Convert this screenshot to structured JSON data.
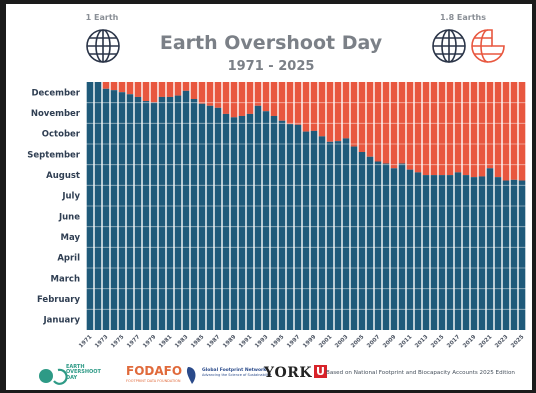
{
  "chart_data": {
    "type": "bar",
    "title": "Earth Overshoot Day",
    "subtitle": "1971 - 2025",
    "left_label": "1 Earth",
    "right_label": "1.8 Earths",
    "y_tick_labels": [
      "January",
      "February",
      "March",
      "April",
      "May",
      "June",
      "July",
      "August",
      "September",
      "October",
      "November",
      "December"
    ],
    "x_tick_labels": [
      "1971",
      "1973",
      "1975",
      "1977",
      "1979",
      "1981",
      "1983",
      "1985",
      "1987",
      "1989",
      "1991",
      "1993",
      "1995",
      "1997",
      "1999",
      "2001",
      "2003",
      "2005",
      "2007",
      "2009",
      "2011",
      "2013",
      "2015",
      "2017",
      "2019",
      "2021",
      "2023",
      "2025"
    ],
    "years": [
      1971,
      1972,
      1973,
      1974,
      1975,
      1976,
      1977,
      1978,
      1979,
      1980,
      1981,
      1982,
      1983,
      1984,
      1985,
      1986,
      1987,
      1988,
      1989,
      1990,
      1991,
      1992,
      1993,
      1994,
      1995,
      1996,
      1997,
      1998,
      1999,
      2000,
      2001,
      2002,
      2003,
      2004,
      2005,
      2006,
      2007,
      2008,
      2009,
      2010,
      2011,
      2012,
      2013,
      2014,
      2015,
      2016,
      2017,
      2018,
      2019,
      2020,
      2021,
      2022,
      2023,
      2024,
      2025
    ],
    "series": [
      {
        "values": [
          365,
          365,
          355,
          353,
          350,
          347,
          343,
          337,
          335,
          343,
          343,
          345,
          352,
          340,
          333,
          330,
          327,
          318,
          313,
          315,
          318,
          330,
          322,
          315,
          308,
          303,
          302,
          292,
          293,
          285,
          277,
          278,
          282,
          270,
          262,
          255,
          248,
          245,
          238,
          245,
          236,
          232,
          228,
          228,
          228,
          228,
          232,
          228,
          225,
          226,
          238,
          225,
          220,
          221,
          220
        ]
      },
      {
        "values": [
          0,
          0,
          10,
          12,
          15,
          18,
          22,
          28,
          30,
          22,
          22,
          20,
          13,
          25,
          32,
          35,
          38,
          47,
          52,
          50,
          47,
          35,
          43,
          50,
          57,
          62,
          63,
          73,
          72,
          80,
          88,
          87,
          83,
          95,
          103,
          110,
          117,
          120,
          127,
          120,
          129,
          133,
          137,
          137,
          137,
          137,
          133,
          137,
          140,
          139,
          127,
          140,
          145,
          144,
          145
        ]
      }
    ],
    "ylim": [
      0,
      365
    ],
    "colors": {
      "within": "#1f5a7a",
      "overshoot": "#e8573f",
      "earth_icon": "#2b3548"
    }
  },
  "footer": {
    "eod_logo_text": [
      "EARTH",
      "OVERSHOOT",
      "DAY"
    ],
    "fodafo": "FODAFO",
    "fodafo_subtitle": "FOOTPRINT DATA FOUNDATION",
    "gfn_title": "Global Footprint Network",
    "gfn_subtitle": "Advancing the Science of Sustainability",
    "york": "YORK",
    "york_u": "U",
    "note": "Based on National Footprint and Biocapacity Accounts 2025 Edition"
  }
}
